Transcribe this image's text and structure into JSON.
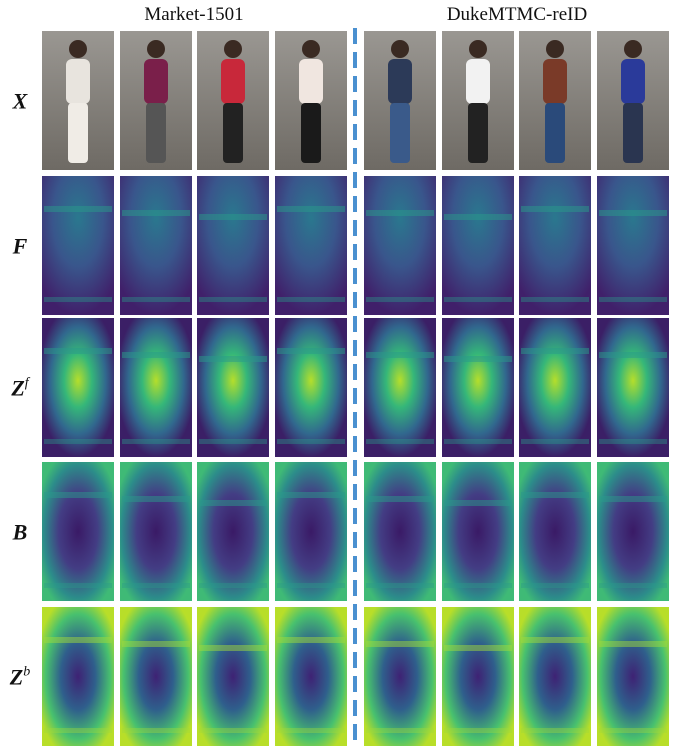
{
  "header": {
    "left_title": "Market-1501",
    "right_title": "DukeMTMC-reID"
  },
  "rows": [
    {
      "label": "X"
    },
    {
      "label": "F"
    },
    {
      "label": "Z",
      "superscript": "f"
    },
    {
      "label": "B"
    },
    {
      "label": "Z",
      "superscript": "b"
    }
  ]
}
